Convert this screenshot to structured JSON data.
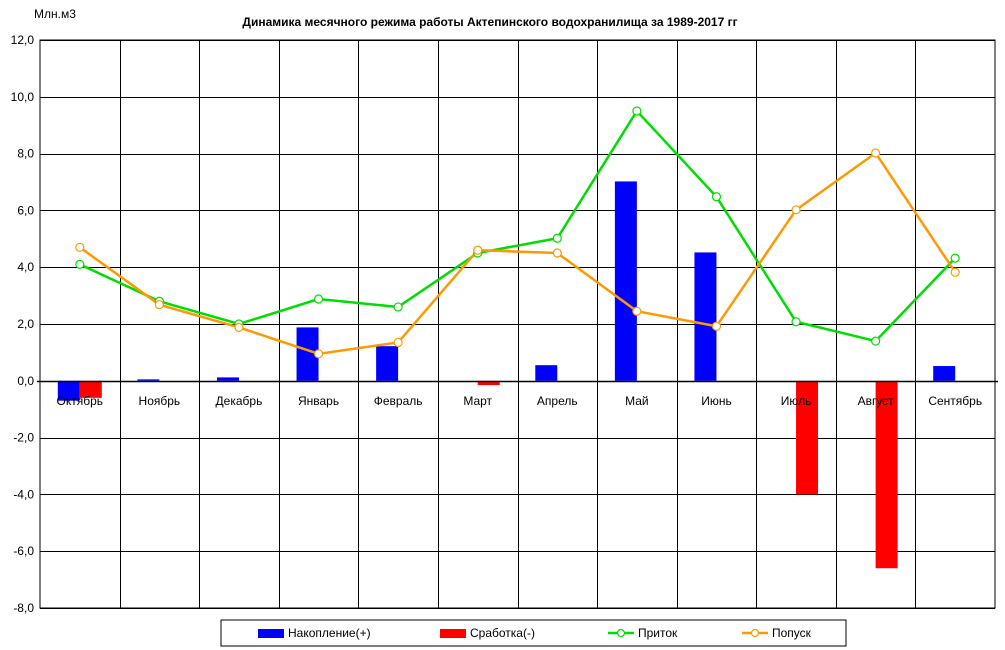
{
  "chart_data": {
    "type": "bar",
    "title": "Динамика месячного режима работы Актепинского водохранилища за 1989-2017 гг",
    "ylabel": "Млн.м3",
    "xlabel": "",
    "ylim": [
      -8,
      12
    ],
    "ytick_step": 2,
    "y_tick_labels": [
      "12,0",
      "10,0",
      "8,0",
      "6,0",
      "4,0",
      "2,0",
      "0,0",
      "-2,0",
      "-4,0",
      "-6,0",
      "-8,0"
    ],
    "grid": true,
    "legend_position": "bottom",
    "categories": [
      "Октябрь",
      "Ноябрь",
      "Декабрь",
      "Январь",
      "Февраль",
      "Март",
      "Апрель",
      "Май",
      "Июнь",
      "Июль",
      "Август",
      "Сентябрь"
    ],
    "series": [
      {
        "name": "Накопление(+)",
        "type": "bar",
        "color": "#0000ff",
        "values": [
          -0.7,
          0.05,
          0.12,
          1.88,
          1.22,
          0,
          0.55,
          7.02,
          4.52,
          0,
          0,
          0.52
        ]
      },
      {
        "name": "Сработка(-)",
        "type": "bar",
        "color": "#ff0000",
        "values": [
          -0.6,
          0,
          0,
          0,
          0,
          -0.15,
          0,
          0,
          0,
          -4.0,
          -6.6,
          0
        ]
      },
      {
        "name": "Приток",
        "type": "line",
        "color": "#00dd00",
        "values": [
          4.1,
          2.8,
          2.0,
          2.88,
          2.6,
          4.5,
          5.02,
          9.5,
          6.48,
          2.08,
          1.4,
          4.32
        ]
      },
      {
        "name": "Попуск",
        "type": "line",
        "color": "#ff9900",
        "values": [
          4.7,
          2.68,
          1.88,
          0.95,
          1.35,
          4.6,
          4.5,
          2.45,
          1.92,
          6.02,
          8.02,
          3.82
        ]
      }
    ]
  }
}
